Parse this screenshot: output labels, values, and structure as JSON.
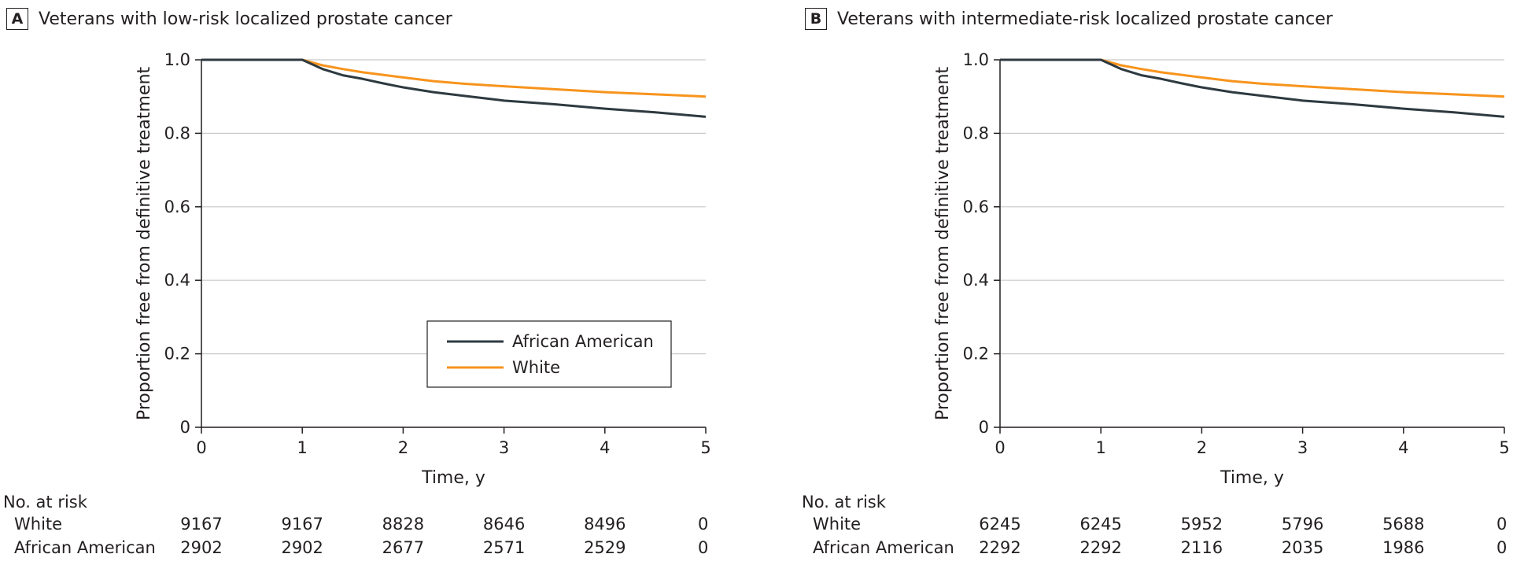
{
  "panels": [
    {
      "letter": "A",
      "title": "Veterans with low-risk localized prostate cancer",
      "show_legend": true
    },
    {
      "letter": "B",
      "title": "Veterans with intermediate-risk localized prostate cancer",
      "show_legend": false
    }
  ],
  "chart_data": [
    {
      "type": "line",
      "title": "Veterans with low-risk localized prostate cancer",
      "xlabel": "Time, y",
      "ylabel": "Proportion free from definitive treatment",
      "xlim": [
        0,
        5
      ],
      "ylim": [
        0,
        1
      ],
      "x_ticks": [
        "0",
        "1",
        "2",
        "3",
        "4",
        "5"
      ],
      "y_ticks": [
        "0",
        "0.2",
        "0.4",
        "0.6",
        "0.8",
        "1.0"
      ],
      "grid": "horizontal",
      "legend_position": "lower-right",
      "series": [
        {
          "name": "African American",
          "color": "#2e3a40",
          "x": [
            0,
            1,
            1.2,
            1.4,
            1.6,
            1.8,
            2,
            2.3,
            2.6,
            3,
            3.5,
            4,
            4.5,
            5
          ],
          "y": [
            1.0,
            1.0,
            0.975,
            0.958,
            0.948,
            0.936,
            0.925,
            0.912,
            0.902,
            0.889,
            0.879,
            0.867,
            0.857,
            0.845
          ]
        },
        {
          "name": "White",
          "color": "#f7941d",
          "x": [
            0,
            1,
            1.2,
            1.4,
            1.6,
            1.8,
            2,
            2.3,
            2.6,
            3,
            3.5,
            4,
            4.5,
            5
          ],
          "y": [
            1.0,
            1.0,
            0.985,
            0.975,
            0.966,
            0.959,
            0.952,
            0.942,
            0.935,
            0.928,
            0.92,
            0.912,
            0.906,
            0.9
          ]
        }
      ],
      "risk_table": {
        "heading": "No. at risk",
        "rows": [
          {
            "label": "White",
            "values": [
              "9167",
              "9167",
              "8828",
              "8646",
              "8496",
              "0"
            ]
          },
          {
            "label": "African American",
            "values": [
              "2902",
              "2902",
              "2677",
              "2571",
              "2529",
              "0"
            ]
          }
        ]
      }
    },
    {
      "type": "line",
      "title": "Veterans with intermediate-risk localized prostate cancer",
      "xlabel": "Time, y",
      "ylabel": "Proportion free from definitive treatment",
      "xlim": [
        0,
        5
      ],
      "ylim": [
        0,
        1
      ],
      "x_ticks": [
        "0",
        "1",
        "2",
        "3",
        "4",
        "5"
      ],
      "y_ticks": [
        "0",
        "0.2",
        "0.4",
        "0.6",
        "0.8",
        "1.0"
      ],
      "grid": "horizontal",
      "series": [
        {
          "name": "African American",
          "color": "#2e3a40",
          "x": [
            0,
            1,
            1.2,
            1.4,
            1.6,
            1.8,
            2,
            2.3,
            2.6,
            3,
            3.5,
            4,
            4.5,
            5
          ],
          "y": [
            1.0,
            1.0,
            0.975,
            0.958,
            0.948,
            0.936,
            0.925,
            0.912,
            0.902,
            0.889,
            0.879,
            0.867,
            0.857,
            0.845
          ]
        },
        {
          "name": "White",
          "color": "#f7941d",
          "x": [
            0,
            1,
            1.2,
            1.4,
            1.6,
            1.8,
            2,
            2.3,
            2.6,
            3,
            3.5,
            4,
            4.5,
            5
          ],
          "y": [
            1.0,
            1.0,
            0.985,
            0.975,
            0.966,
            0.959,
            0.952,
            0.942,
            0.935,
            0.928,
            0.92,
            0.912,
            0.906,
            0.9
          ]
        }
      ],
      "risk_table": {
        "heading": "No. at risk",
        "rows": [
          {
            "label": "White",
            "values": [
              "6245",
              "6245",
              "5952",
              "5796",
              "5688",
              "0"
            ]
          },
          {
            "label": "African American",
            "values": [
              "2292",
              "2292",
              "2116",
              "2035",
              "1986",
              "0"
            ]
          }
        ]
      }
    }
  ]
}
